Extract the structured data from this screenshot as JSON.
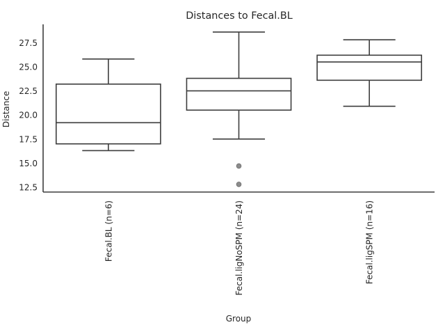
{
  "chart_data": {
    "type": "box",
    "title": "Distances to Fecal.BL",
    "xlabel": "Group",
    "ylabel": "Distance",
    "ylim": [
      12.0,
      29.4
    ],
    "yticks": [
      "12.5",
      "15.0",
      "17.5",
      "20.0",
      "22.5",
      "25.0",
      "27.5"
    ],
    "grid": false,
    "categories": [
      "Fecal.BL (n=6)",
      "Fecal.ligNoSPM (n=24)",
      "Fecal.ligSPM (n=16)"
    ],
    "boxes": [
      {
        "whisker_low": 16.3,
        "q1": 17.0,
        "median": 19.2,
        "q3": 23.2,
        "whisker_high": 25.8,
        "outliers": []
      },
      {
        "whisker_low": 17.5,
        "q1": 20.5,
        "median": 22.5,
        "q3": 23.8,
        "whisker_high": 28.6,
        "outliers": [
          14.7,
          12.8
        ]
      },
      {
        "whisker_low": 20.9,
        "q1": 23.6,
        "median": 25.5,
        "q3": 26.2,
        "whisker_high": 27.8,
        "outliers": []
      }
    ],
    "colors": {
      "box_edge": "#3d3d3d",
      "box_fill": "#ffffff",
      "outlier": "#8c8c8c",
      "text": "#262626"
    }
  }
}
